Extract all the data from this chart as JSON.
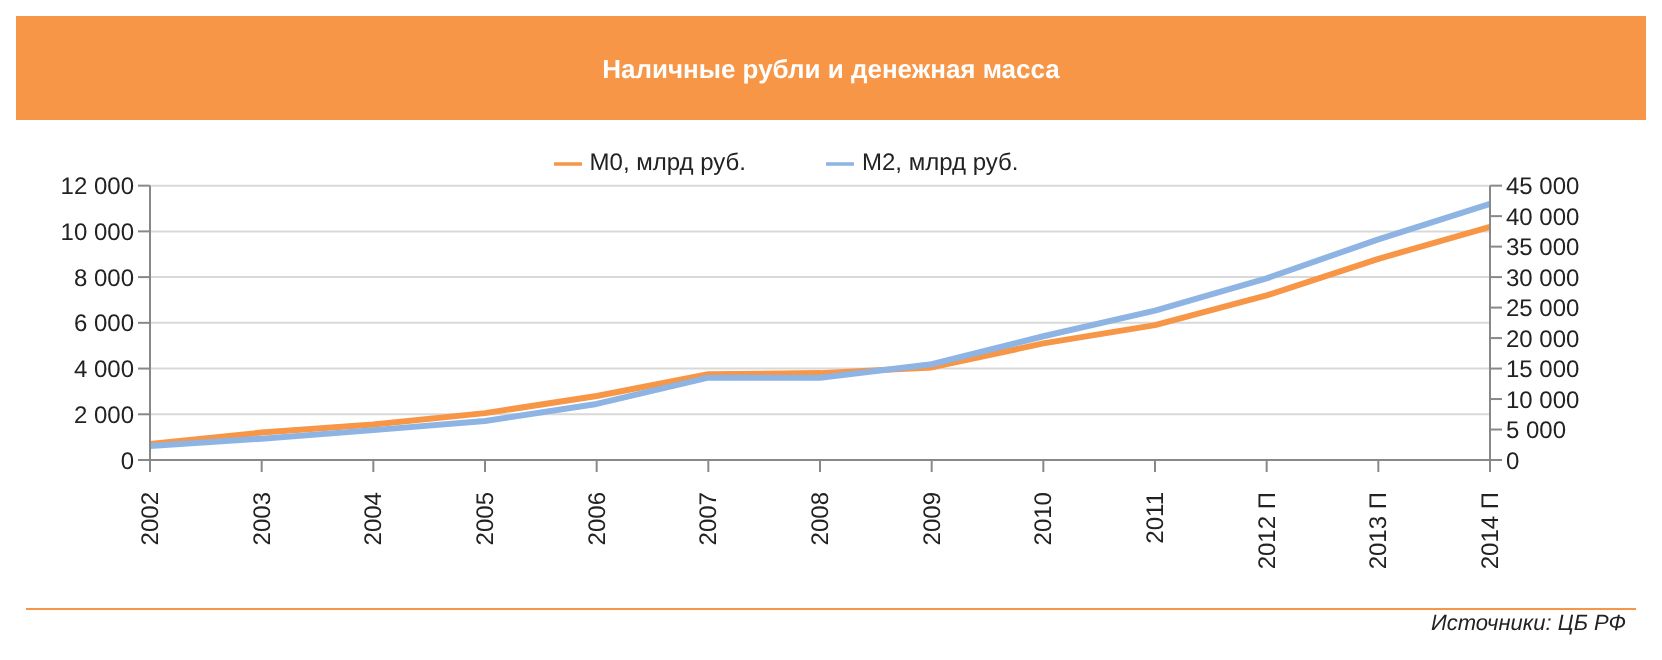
{
  "chart_data": {
    "type": "line",
    "title": "Наличные рубли и денежная масса",
    "annotations": [
      "Источники: ЦБ РФ"
    ],
    "categories": [
      "2002",
      "2003",
      "2004",
      "2005",
      "2006",
      "2007",
      "2008",
      "2009",
      "2010",
      "2011",
      "2012 П",
      "2013 П",
      "2014 П"
    ],
    "series": [
      {
        "name": "M0, млрд   руб.",
        "color": "#f79646",
        "values": [
          700,
          1200,
          1550,
          2050,
          2800,
          3750,
          3800,
          4050,
          5100,
          5900,
          7200,
          8800,
          10200
        ]
      },
      {
        "name": "M2, млрд  руб.",
        "color": "#8eb4e3",
        "axis": "y2",
        "values": [
          2300,
          3500,
          4900,
          6400,
          9200,
          13500,
          13500,
          15700,
          20300,
          24500,
          29800,
          36200,
          42000
        ]
      }
    ],
    "ylim": [
      0,
      12000
    ],
    "yticks": [
      0,
      2000,
      4000,
      6000,
      8000,
      10000,
      12000
    ],
    "y2lim": [
      0,
      45000
    ],
    "y2ticks": [
      0,
      5000,
      10000,
      15000,
      20000,
      25000,
      30000,
      35000,
      40000,
      45000
    ],
    "grid": "y",
    "legend": "top",
    "marker": "none",
    "line_style": "solid"
  }
}
